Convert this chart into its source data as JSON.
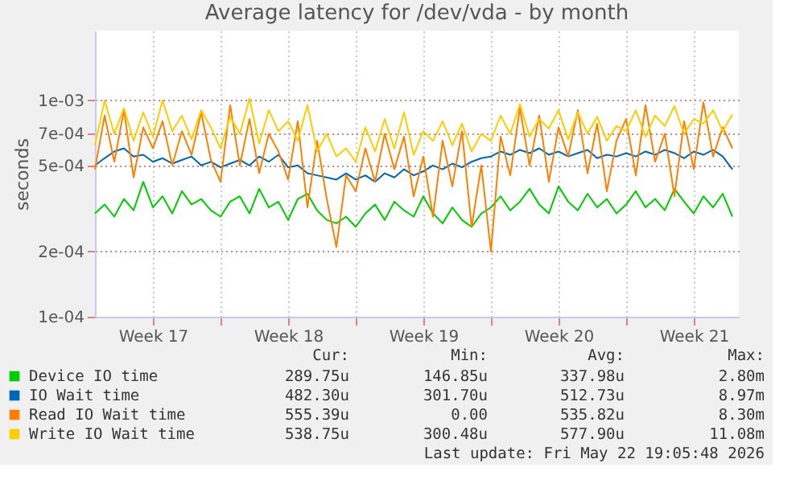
{
  "chart_data": {
    "type": "line",
    "title": "Average latency for /dev/vda - by month",
    "ylabel": "seconds",
    "log": "y",
    "grid": true,
    "legend": "bottom",
    "x": [
      "2026-04-20T12:00",
      "2026-04-21T00:00",
      "2026-04-21T12:00",
      "2026-04-22T00:00",
      "2026-04-22T12:00",
      "2026-04-23T00:00",
      "2026-04-23T12:00",
      "2026-04-24T00:00",
      "2026-04-24T12:00",
      "2026-04-25T00:00",
      "2026-04-25T12:00",
      "2026-04-26T00:00",
      "2026-04-26T12:00",
      "2026-04-27T00:00",
      "2026-04-27T12:00",
      "2026-04-28T00:00",
      "2026-04-28T12:00",
      "2026-04-29T00:00",
      "2026-04-29T12:00",
      "2026-04-30T00:00",
      "2026-04-30T12:00",
      "2026-05-01T00:00",
      "2026-05-01T12:00",
      "2026-05-02T00:00",
      "2026-05-02T12:00",
      "2026-05-03T00:00",
      "2026-05-03T12:00",
      "2026-05-04T00:00",
      "2026-05-04T12:00",
      "2026-05-05T00:00",
      "2026-05-05T12:00",
      "2026-05-06T00:00",
      "2026-05-06T12:00",
      "2026-05-07T00:00",
      "2026-05-07T12:00",
      "2026-05-08T00:00",
      "2026-05-08T12:00",
      "2026-05-09T00:00",
      "2026-05-09T12:00",
      "2026-05-10T00:00",
      "2026-05-10T12:00",
      "2026-05-11T00:00",
      "2026-05-11T12:00",
      "2026-05-12T00:00",
      "2026-05-12T12:00",
      "2026-05-13T00:00",
      "2026-05-13T12:00",
      "2026-05-14T00:00",
      "2026-05-14T12:00",
      "2026-05-15T00:00",
      "2026-05-15T12:00",
      "2026-05-16T00:00",
      "2026-05-16T12:00",
      "2026-05-17T00:00",
      "2026-05-17T12:00",
      "2026-05-18T00:00",
      "2026-05-18T12:00",
      "2026-05-19T00:00",
      "2026-05-19T12:00",
      "2026-05-20T00:00",
      "2026-05-20T12:00",
      "2026-05-21T00:00",
      "2026-05-21T12:00",
      "2026-05-22T00:00",
      "2026-05-22T12:00",
      "2026-05-23T00:00",
      "2026-05-23T12:00"
    ],
    "xlim": [
      "2026-04-20T12:00",
      "2026-05-23T20:00"
    ],
    "xticks": [
      {
        "value": "2026-04-23T12:00",
        "label": "Week 17"
      },
      {
        "value": "2026-04-27T00:00",
        "label": null
      },
      {
        "value": "2026-04-30T12:00",
        "label": "Week 18"
      },
      {
        "value": "2026-05-04T00:00",
        "label": null
      },
      {
        "value": "2026-05-07T12:00",
        "label": "Week 19"
      },
      {
        "value": "2026-05-11T00:00",
        "label": null
      },
      {
        "value": "2026-05-14T12:00",
        "label": "Week 20"
      },
      {
        "value": "2026-05-18T00:00",
        "label": null
      },
      {
        "value": "2026-05-21T12:00",
        "label": "Week 21"
      }
    ],
    "ylim": [
      0.0001,
      0.0021
    ],
    "yticks": [
      {
        "value": 0.0001,
        "label": "1e-04"
      },
      {
        "value": 0.0002,
        "label": "2e-04"
      },
      {
        "value": 0.0005,
        "label": "5e-04"
      },
      {
        "value": 0.0007,
        "label": "7e-04"
      },
      {
        "value": 0.001,
        "label": "1e-03"
      }
    ],
    "series": [
      {
        "name": "Device IO time",
        "color": "#00cc00",
        "values": [
          0.0003,
          0.00033,
          0.00029,
          0.00035,
          0.00031,
          0.00042,
          0.00032,
          0.00036,
          0.0003,
          0.00038,
          0.00033,
          0.00035,
          0.00031,
          0.00029,
          0.00034,
          0.00036,
          0.0003,
          0.00039,
          0.00032,
          0.00034,
          0.00028,
          0.00035,
          0.00037,
          0.00031,
          0.00028,
          0.00027,
          0.00029,
          0.00026,
          0.0003,
          0.00033,
          0.00028,
          0.00034,
          0.00031,
          0.00029,
          0.00036,
          0.0003,
          0.00027,
          0.00032,
          0.00028,
          0.00026,
          0.0003,
          0.00032,
          0.00036,
          0.00031,
          0.00034,
          0.00039,
          0.00033,
          0.0003,
          0.0004,
          0.00034,
          0.00031,
          0.00037,
          0.00032,
          0.00035,
          0.0003,
          0.00033,
          0.00038,
          0.00032,
          0.00035,
          0.00031,
          0.00039,
          0.00034,
          0.0003,
          0.00036,
          0.00032,
          0.00037,
          0.00029
        ]
      },
      {
        "name": "IO Wait time",
        "color": "#0066b3",
        "values": [
          0.0005,
          0.00054,
          0.00058,
          0.0006,
          0.00055,
          0.00056,
          0.00052,
          0.00054,
          0.00051,
          0.00053,
          0.00055,
          0.0005,
          0.00052,
          0.00049,
          0.00051,
          0.00053,
          0.0005,
          0.00055,
          0.00052,
          0.00056,
          0.00049,
          0.0005,
          0.00046,
          0.00045,
          0.00044,
          0.00043,
          0.00046,
          0.00043,
          0.00045,
          0.00042,
          0.00046,
          0.00044,
          0.00048,
          0.00045,
          0.00047,
          0.0005,
          0.00048,
          0.00051,
          0.00049,
          0.00052,
          0.00054,
          0.00055,
          0.00058,
          0.00056,
          0.00059,
          0.00057,
          0.0006,
          0.00056,
          0.00058,
          0.00055,
          0.00057,
          0.00059,
          0.00054,
          0.00056,
          0.00055,
          0.00057,
          0.00055,
          0.00058,
          0.00056,
          0.00059,
          0.00057,
          0.00054,
          0.00058,
          0.00056,
          0.00059,
          0.00055,
          0.00048
        ]
      },
      {
        "name": "Read IO Wait time",
        "color": "#ff8000",
        "values": [
          0.00048,
          0.00085,
          0.00052,
          0.0009,
          0.00044,
          0.00075,
          0.0006,
          0.0008,
          0.0005,
          0.00072,
          0.00056,
          0.00088,
          0.00053,
          0.00042,
          0.00095,
          0.0005,
          0.00082,
          0.00046,
          0.0007,
          0.00058,
          0.00043,
          0.0008,
          0.00032,
          0.00065,
          0.00035,
          0.00021,
          0.00045,
          0.00038,
          0.0006,
          0.00042,
          0.0007,
          0.00048,
          0.00068,
          0.00036,
          0.00055,
          0.00029,
          0.00065,
          0.0004,
          0.00072,
          0.00026,
          0.0005,
          0.0002,
          0.00068,
          0.00045,
          0.00092,
          0.0005,
          0.00085,
          0.00042,
          0.00075,
          0.00055,
          0.0009,
          0.00046,
          0.00078,
          0.00038,
          0.00065,
          0.00082,
          0.00045,
          0.00095,
          0.00052,
          0.0007,
          0.00036,
          0.0008,
          0.00048,
          0.00098,
          0.00055,
          0.00075,
          0.0006
        ]
      },
      {
        "name": "Write IO Wait time",
        "color": "#ffcc00",
        "values": [
          0.00062,
          0.001,
          0.0007,
          0.00092,
          0.00065,
          0.00088,
          0.00068,
          0.001,
          0.00072,
          0.00085,
          0.00066,
          0.0009,
          0.00075,
          0.0006,
          0.00084,
          0.0007,
          0.00102,
          0.00063,
          0.0009,
          0.00072,
          0.0008,
          0.00065,
          0.00095,
          0.00058,
          0.0007,
          0.00055,
          0.0006,
          0.00052,
          0.00075,
          0.00058,
          0.00082,
          0.0006,
          0.00088,
          0.00056,
          0.00072,
          0.00065,
          0.0008,
          0.00062,
          0.00078,
          0.00058,
          0.0007,
          0.00065,
          0.00085,
          0.0007,
          0.00096,
          0.00068,
          0.00082,
          0.00074,
          0.0009,
          0.00066,
          0.00088,
          0.0007,
          0.00084,
          0.00065,
          0.00076,
          0.00072,
          0.0009,
          0.00068,
          0.00085,
          0.00076,
          0.00094,
          0.0007,
          0.00082,
          0.00078,
          0.0009,
          0.00072,
          0.00086
        ]
      }
    ],
    "annotations": [
      "Cur:",
      "Min:",
      "Avg:",
      "Max:",
      "289.75u",
      "146.85u",
      "337.98u",
      "2.80m",
      "482.30u",
      "301.70u",
      "512.73u",
      "8.97m",
      "555.39u",
      "0.00",
      "535.82u",
      "8.30m",
      "538.75u",
      "300.48u",
      "577.90u",
      "11.08m",
      "Last update: Fri May 22 19:05:48 2026"
    ]
  }
}
